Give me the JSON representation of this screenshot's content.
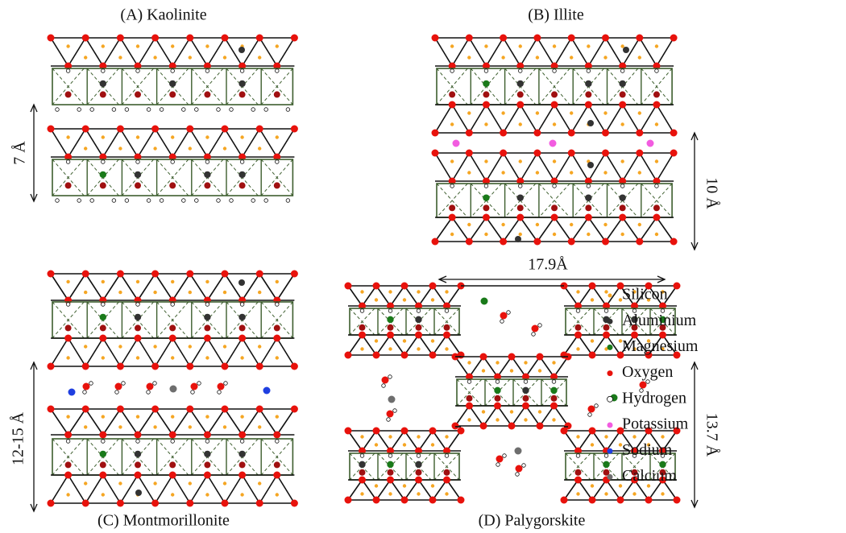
{
  "panels": [
    {
      "label": "(A) Kaolinite",
      "dimension": "7 Å"
    },
    {
      "label": "(B) Illite",
      "dimension": "10 Å"
    },
    {
      "label": "(C) Montmorillonite",
      "dimension": "12-15 Å"
    },
    {
      "label": "(D) Palygorskite",
      "dimension": "13.7 Å",
      "width_dimension": "17.9Å"
    }
  ],
  "legend": [
    {
      "label": "Silicon",
      "color": "#f5a623"
    },
    {
      "label": "Aluminium",
      "color": "#333333"
    },
    {
      "label": "Magnesium",
      "color": "#1a7a1a"
    },
    {
      "label": "Oxygen",
      "color": "#e8120c"
    },
    {
      "label": "Hydrogen",
      "color": "#ffffff"
    },
    {
      "label": "Potassium",
      "color": "#f25ce0"
    },
    {
      "label": "Sodium",
      "color": "#1f3fe0"
    },
    {
      "label": "Calcium",
      "color": "#6e6e6e"
    }
  ]
}
